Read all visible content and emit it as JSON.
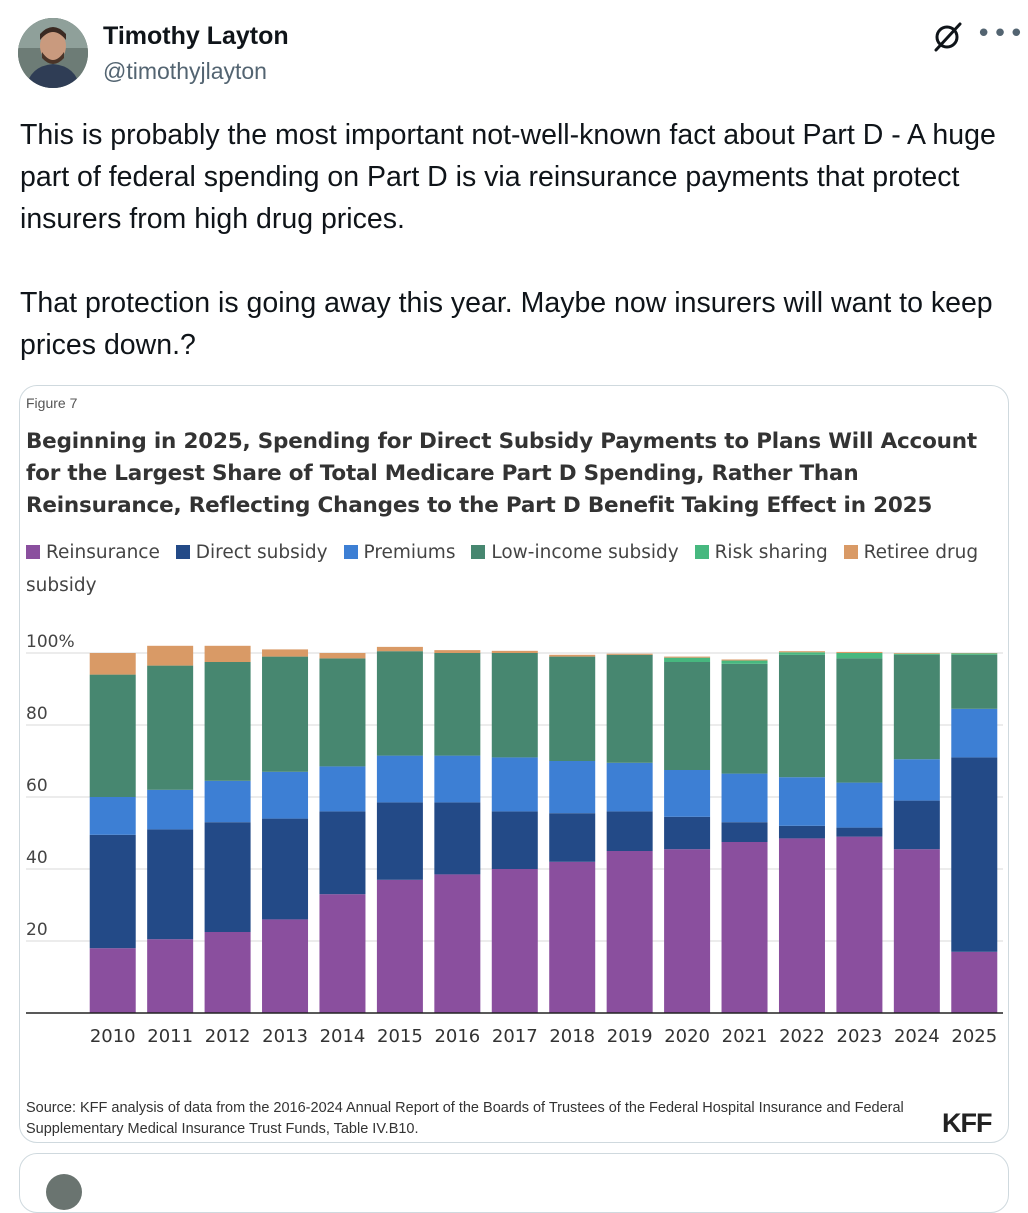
{
  "author": {
    "name": "Timothy Layton",
    "handle": "@timothyjlayton"
  },
  "icons": {
    "grok": "grok-slash-circle-icon",
    "more": "more-horizontal-icon"
  },
  "tweet": {
    "paragraph1": "This is probably the most important not-well-known fact about Part D - A huge part of federal spending on Part D is via reinsurance payments that protect insurers from high drug prices.",
    "paragraph2": "That protection is going away this year. Maybe now insurers will want to keep prices down.?"
  },
  "figure": {
    "label": "Figure 7",
    "source": "Source: KFF analysis of data from the 2016-2024 Annual Report of the Boards of Trustees of the Federal Hospital Insurance and Federal Supplementary Medical Insurance Trust Funds, Table IV.B10.",
    "brand": "KFF"
  },
  "chart_data": {
    "type": "bar",
    "stacked": true,
    "title": "Beginning in 2025, Spending for Direct Subsidy Payments to Plans Will Account for the Largest Share of Total Medicare Part D Spending, Rather Than Reinsurance, Reflecting Changes to the Part D Benefit Taking Effect in 2025",
    "xlabel": "",
    "ylabel": "",
    "ylim": [
      0,
      100
    ],
    "yticks": [
      {
        "value": 20,
        "label": "20"
      },
      {
        "value": 40,
        "label": "40"
      },
      {
        "value": 60,
        "label": "60"
      },
      {
        "value": 80,
        "label": "80"
      },
      {
        "value": 100,
        "label": "100%"
      }
    ],
    "categories": [
      "2010",
      "2011",
      "2012",
      "2013",
      "2014",
      "2015",
      "2016",
      "2017",
      "2018",
      "2019",
      "2020",
      "2021",
      "2022",
      "2023",
      "2024",
      "2025"
    ],
    "series": [
      {
        "name": "Reinsurance",
        "color": "#8a4f9e",
        "values": [
          18,
          20.5,
          22.5,
          26,
          33,
          37,
          38.5,
          40,
          42,
          45,
          45.5,
          47.5,
          48.5,
          49,
          45.5,
          17
        ]
      },
      {
        "name": "Direct subsidy",
        "color": "#234a87",
        "values": [
          31.5,
          30.5,
          30.5,
          28,
          23,
          21.5,
          20,
          16,
          13.5,
          11,
          9,
          5.5,
          3.5,
          2.5,
          13.5,
          54
        ]
      },
      {
        "name": "Premiums",
        "color": "#3d7fd4",
        "values": [
          10.5,
          11,
          11.5,
          13,
          12.5,
          13,
          13,
          15,
          14.5,
          13.5,
          13,
          13.5,
          13.5,
          12.5,
          11.5,
          13.5
        ]
      },
      {
        "name": "Low-income subsidy",
        "color": "#478770",
        "values": [
          34,
          34.5,
          33,
          32,
          30,
          29,
          28.5,
          29,
          29,
          30,
          30,
          30.5,
          34,
          34.5,
          29,
          15
        ]
      },
      {
        "name": "Risk sharing",
        "color": "#47b87f",
        "values": [
          0,
          0,
          0,
          0,
          0,
          0,
          0,
          0,
          0,
          0,
          1.2,
          0.9,
          0.7,
          1.5,
          0.3,
          0.4
        ]
      },
      {
        "name": "Retiree drug subsidy",
        "color": "#d99a66",
        "values": [
          6,
          5.5,
          4.5,
          2,
          1.5,
          1.2,
          0.8,
          0.6,
          0.5,
          0.3,
          0.3,
          0.3,
          0.3,
          0.3,
          0.2,
          0.1
        ]
      }
    ],
    "legend": "top-left",
    "grid": true
  }
}
